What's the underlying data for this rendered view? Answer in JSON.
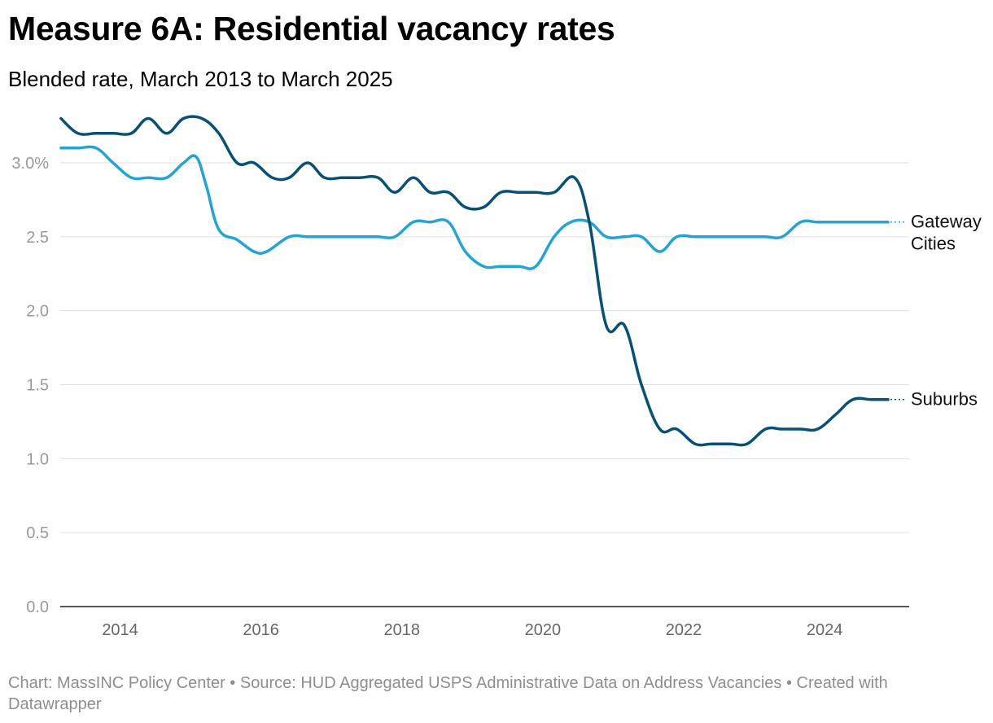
{
  "header": {
    "title": "Measure 6A: Residential vacancy rates",
    "subtitle": "Blended rate, March 2013 to March 2025"
  },
  "footer": {
    "chart_credit": "Chart: MassINC Policy Center",
    "separator": " • ",
    "source": "Source: HUD Aggregated USPS Administrative Data on Address Vacancies",
    "created_with": "Created with Datawrapper"
  },
  "colors": {
    "gateway": "#27a3d0",
    "suburbs": "#0a5073",
    "grid": "#e0e0e0",
    "axis": "#222222",
    "tick_text": "#9a9a9a"
  },
  "chart_data": {
    "type": "line",
    "title": "Measure 6A: Residential vacancy rates",
    "subtitle": "Blended rate, March 2013 to March 2025",
    "xlabel": "",
    "ylabel": "",
    "xlim": [
      2013.15,
      2025.2
    ],
    "ylim": [
      0,
      3.2
    ],
    "x_ticks": [
      2014,
      2016,
      2018,
      2020,
      2022,
      2024
    ],
    "x_tick_labels": [
      "2014",
      "2016",
      "2018",
      "2020",
      "2022",
      "2024"
    ],
    "y_ticks": [
      0,
      0.5,
      1,
      1.5,
      2,
      2.5,
      3
    ],
    "y_tick_labels": [
      "0.0",
      "0.5",
      "1.0",
      "1.5",
      "2.0",
      "2.5",
      "3.0%"
    ],
    "grid": true,
    "series": [
      {
        "name": "Gateway Cities",
        "label_lines": [
          "Gateway",
          "Cities"
        ],
        "color": "#27a3d0",
        "x": [
          2013.16,
          2013.4,
          2013.66,
          2013.9,
          2014.16,
          2014.4,
          2014.66,
          2014.9,
          2015.08,
          2015.22,
          2015.4,
          2015.66,
          2015.9,
          2016.08,
          2016.4,
          2016.66,
          2016.9,
          2017.16,
          2017.4,
          2017.66,
          2017.9,
          2018.16,
          2018.4,
          2018.66,
          2018.9,
          2019.16,
          2019.4,
          2019.66,
          2019.9,
          2020.16,
          2020.4,
          2020.66,
          2020.9,
          2021.16,
          2021.4,
          2021.66,
          2021.9,
          2022.16,
          2022.4,
          2022.66,
          2022.9,
          2023.16,
          2023.4,
          2023.66,
          2023.9,
          2024.16,
          2024.4,
          2024.66,
          2024.9
        ],
        "values": [
          3.1,
          3.1,
          3.1,
          3.0,
          2.9,
          2.9,
          2.9,
          3.0,
          3.04,
          2.85,
          2.55,
          2.48,
          2.4,
          2.4,
          2.5,
          2.5,
          2.5,
          2.5,
          2.5,
          2.5,
          2.5,
          2.6,
          2.6,
          2.6,
          2.4,
          2.3,
          2.3,
          2.3,
          2.3,
          2.5,
          2.6,
          2.6,
          2.5,
          2.5,
          2.5,
          2.4,
          2.5,
          2.5,
          2.5,
          2.5,
          2.5,
          2.5,
          2.5,
          2.6,
          2.6,
          2.6,
          2.6,
          2.6,
          2.6
        ]
      },
      {
        "name": "Suburbs",
        "label_lines": [
          "Suburbs"
        ],
        "color": "#0a5073",
        "x": [
          2013.16,
          2013.4,
          2013.66,
          2013.9,
          2014.16,
          2014.4,
          2014.66,
          2014.9,
          2015.16,
          2015.4,
          2015.66,
          2015.9,
          2016.16,
          2016.4,
          2016.66,
          2016.9,
          2017.16,
          2017.4,
          2017.66,
          2017.9,
          2018.16,
          2018.4,
          2018.66,
          2018.9,
          2019.16,
          2019.4,
          2019.66,
          2019.9,
          2020.16,
          2020.45,
          2020.66,
          2020.9,
          2021.16,
          2021.4,
          2021.66,
          2021.9,
          2022.16,
          2022.4,
          2022.66,
          2022.9,
          2023.16,
          2023.4,
          2023.66,
          2023.9,
          2024.16,
          2024.4,
          2024.66,
          2024.9
        ],
        "values": [
          3.3,
          3.2,
          3.2,
          3.2,
          3.2,
          3.3,
          3.2,
          3.3,
          3.3,
          3.2,
          3.0,
          3.0,
          2.9,
          2.9,
          3.0,
          2.9,
          2.9,
          2.9,
          2.9,
          2.8,
          2.9,
          2.8,
          2.8,
          2.7,
          2.7,
          2.8,
          2.8,
          2.8,
          2.8,
          2.9,
          2.6,
          1.9,
          1.9,
          1.5,
          1.2,
          1.2,
          1.1,
          1.1,
          1.1,
          1.1,
          1.2,
          1.2,
          1.2,
          1.2,
          1.3,
          1.4,
          1.4,
          1.4
        ]
      }
    ]
  }
}
